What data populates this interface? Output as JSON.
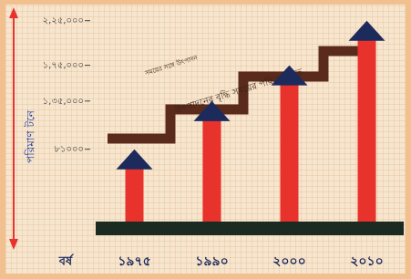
{
  "chart_data": {
    "type": "bar",
    "y_axis_label": "পরিমাণ টনে",
    "x_axis_label": "বর্ষ",
    "annotation": "উৎপাদনের বৃদ্ধি সময়ের পরিপ্রেক্ষিতে",
    "annotation_small": "সময়ের সঙ্গে উৎপাদন",
    "categories": [
      "১৯৭৫",
      "১৯৯০",
      "২০০০",
      "২০১০"
    ],
    "values": [
      81000,
      135000,
      175000,
      225000
    ],
    "color": "#e8322c",
    "head_color": "#1d2a5c",
    "ylim": [
      0,
      240000
    ],
    "yticks": [
      {
        "value": 81000,
        "label": "৮১০০০"
      },
      {
        "value": 135000,
        "label": "১,৩৫,০০০"
      },
      {
        "value": 175000,
        "label": "১,৭৫,০০০"
      },
      {
        "value": 225000,
        "label": "২,২৫,০০০"
      }
    ]
  }
}
